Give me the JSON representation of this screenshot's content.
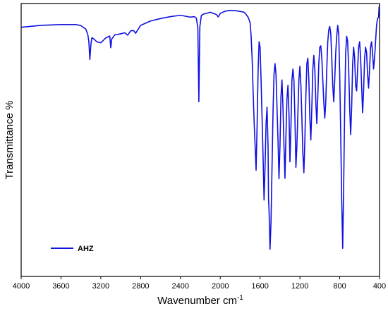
{
  "chart_data": {
    "type": "line",
    "title": "",
    "xlabel": "Wavenumber cm",
    "xlabel_superscript": "-1",
    "ylabel": "Transmittance %",
    "xlim": [
      4000,
      400
    ],
    "x_reversed": true,
    "ylim": [
      0,
      100
    ],
    "y_ticks_shown": false,
    "grid": false,
    "x_ticks": [
      4000,
      3600,
      3200,
      2800,
      2400,
      2000,
      1600,
      1200,
      800,
      400
    ],
    "x_tick_labels": [
      "4000",
      "3600",
      "3200",
      "2800",
      "2400",
      "2000",
      "1600",
      "1200",
      "800",
      "400"
    ],
    "legend": {
      "position": "bottom-left",
      "entries": [
        "AHZ"
      ]
    },
    "series": [
      {
        "name": "AHZ",
        "color": "#1010e0",
        "x": [
          4000,
          3800,
          3600,
          3450,
          3400,
          3350,
          3330,
          3320,
          3310,
          3300,
          3290,
          3270,
          3240,
          3200,
          3150,
          3110,
          3100,
          3090,
          3060,
          3000,
          2960,
          2930,
          2900,
          2870,
          2850,
          2800,
          2700,
          2600,
          2500,
          2400,
          2300,
          2260,
          2240,
          2225,
          2215,
          2205,
          2190,
          2170,
          2100,
          2040,
          2020,
          2000,
          1950,
          1900,
          1850,
          1800,
          1760,
          1740,
          1720,
          1700,
          1690,
          1680,
          1670,
          1660,
          1650,
          1640,
          1630,
          1620,
          1610,
          1600,
          1590,
          1580,
          1570,
          1560,
          1550,
          1540,
          1530,
          1520,
          1515,
          1510,
          1500,
          1490,
          1480,
          1470,
          1460,
          1450,
          1440,
          1430,
          1420,
          1410,
          1400,
          1390,
          1380,
          1370,
          1360,
          1350,
          1340,
          1330,
          1320,
          1310,
          1300,
          1290,
          1280,
          1270,
          1260,
          1250,
          1240,
          1230,
          1220,
          1210,
          1200,
          1190,
          1180,
          1170,
          1160,
          1150,
          1140,
          1130,
          1120,
          1110,
          1100,
          1090,
          1080,
          1070,
          1060,
          1050,
          1040,
          1030,
          1020,
          1010,
          1000,
          990,
          980,
          970,
          960,
          950,
          940,
          930,
          920,
          910,
          900,
          890,
          880,
          870,
          860,
          850,
          840,
          830,
          820,
          810,
          800,
          790,
          780,
          770,
          760,
          750,
          740,
          730,
          720,
          710,
          700,
          690,
          680,
          670,
          660,
          650,
          640,
          630,
          620,
          610,
          600,
          590,
          580,
          570,
          560,
          550,
          540,
          530,
          520,
          510,
          500,
          490,
          480,
          470,
          460,
          450,
          440,
          430,
          420,
          410,
          405,
          400
        ],
        "y": [
          91.3,
          92.0,
          92.3,
          92.3,
          91.9,
          90.6,
          88.5,
          86.0,
          79.5,
          84.8,
          87.5,
          87.0,
          86.0,
          85.6,
          87.4,
          88.1,
          83.8,
          87.0,
          88.5,
          88.9,
          89.3,
          88.4,
          90.0,
          90.1,
          89.1,
          92.0,
          93.6,
          94.5,
          95.2,
          95.7,
          95.0,
          95.2,
          94.6,
          91.0,
          64.0,
          91.5,
          95.6,
          96.1,
          96.8,
          96.0,
          95.1,
          96.4,
          97.2,
          97.5,
          97.4,
          97.1,
          96.8,
          96.0,
          95.0,
          93.0,
          88.0,
          80.0,
          68.0,
          57.0,
          48.0,
          38.9,
          55.0,
          75.0,
          86.0,
          84.0,
          72.0,
          58.0,
          44.0,
          28.0,
          40.0,
          56.0,
          62.0,
          48.0,
          28.0,
          24.5,
          10.0,
          20.0,
          40.0,
          60.0,
          74.0,
          78.0,
          74.0,
          62.0,
          50.0,
          35.8,
          48.0,
          66.0,
          72.0,
          62.0,
          48.0,
          36.0,
          52.0,
          65.0,
          70.0,
          60.0,
          42.0,
          55.0,
          72.0,
          76.0,
          72.0,
          58.0,
          40.0,
          48.0,
          60.0,
          72.0,
          77.0,
          70.0,
          58.0,
          45.0,
          38.0,
          50.0,
          66.0,
          78.0,
          80.0,
          72.0,
          58.0,
          50.0,
          62.0,
          76.0,
          81.0,
          76.0,
          64.0,
          56.0,
          66.0,
          78.0,
          84.0,
          84.5,
          80.0,
          72.0,
          64.0,
          58.0,
          64.0,
          76.0,
          86.0,
          90.4,
          91.6,
          89.0,
          80.0,
          70.0,
          64.0,
          72.0,
          82.0,
          88.0,
          92.0,
          89.0,
          74.0,
          52.0,
          28.0,
          10.3,
          34.0,
          62.0,
          82.0,
          88.0,
          86.0,
          76.0,
          62.0,
          52.0,
          62.0,
          78.0,
          84.0,
          80.0,
          70.0,
          68.0,
          76.0,
          84.0,
          86.0,
          80.0,
          70.0,
          60.0,
          68.0,
          80.0,
          84.0,
          82.0,
          74.0,
          69.0,
          76.0,
          84.0,
          86.0,
          82.0,
          76.0,
          80.0,
          86.0,
          92.0,
          94.5,
          95.0,
          98.5,
          99.5
        ]
      }
    ]
  }
}
